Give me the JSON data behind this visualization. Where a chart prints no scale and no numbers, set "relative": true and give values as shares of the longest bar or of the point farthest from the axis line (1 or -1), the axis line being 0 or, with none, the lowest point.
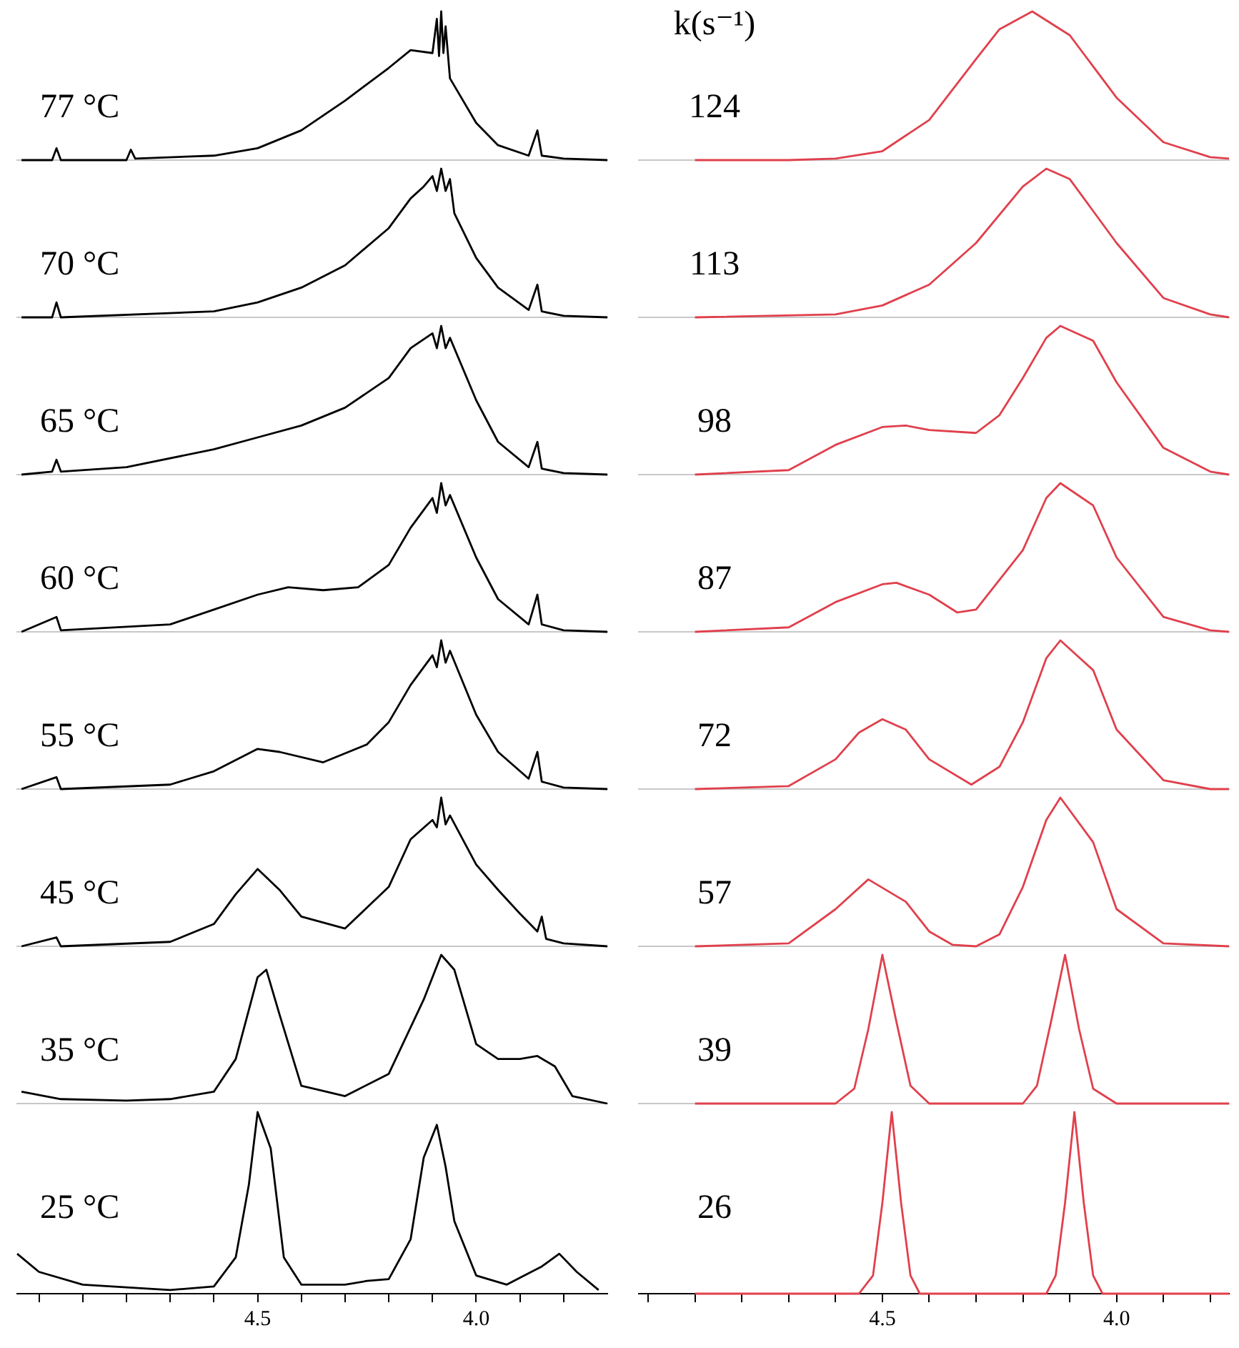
{
  "chart_data": [
    {
      "type": "line",
      "relative": true,
      "marker": "none",
      "tick_labels": false,
      "xlim": [
        5.05,
        3.7
      ],
      "annotations": [
        "77 °C"
      ],
      "x": [
        5.04,
        4.97,
        4.96,
        4.95,
        4.8,
        4.79,
        4.78,
        4.6,
        4.5,
        4.4,
        4.3,
        4.2,
        4.15,
        4.1,
        4.09,
        4.085,
        4.08,
        4.075,
        4.07,
        4.06,
        4.0,
        3.95,
        3.88,
        3.86,
        3.85,
        3.8,
        3.7
      ],
      "series": [
        {
          "color": "#000000",
          "values": [
            0,
            0,
            0.08,
            0,
            0,
            0.07,
            0.01,
            0.03,
            0.08,
            0.2,
            0.4,
            0.62,
            0.74,
            0.72,
            0.95,
            0.7,
            1,
            0.72,
            0.9,
            0.55,
            0.25,
            0.1,
            0.03,
            0.2,
            0.03,
            0.01,
            0
          ]
        }
      ]
    },
    {
      "type": "line",
      "relative": true,
      "marker": "none",
      "tick_labels": false,
      "xlim": [
        5.02,
        3.76
      ],
      "annotations": [
        "k(s⁻¹)",
        "124"
      ],
      "x": [
        4.9,
        4.7,
        4.6,
        4.5,
        4.4,
        4.3,
        4.25,
        4.18,
        4.1,
        4.0,
        3.9,
        3.8,
        3.76
      ],
      "series": [
        {
          "color": "#e0404c",
          "values": [
            0,
            0,
            0.01,
            0.06,
            0.27,
            0.68,
            0.88,
            1,
            0.84,
            0.42,
            0.12,
            0.02,
            0.01
          ]
        }
      ]
    },
    {
      "type": "line",
      "relative": true,
      "marker": "none",
      "tick_labels": false,
      "xlim": [
        5.05,
        3.7
      ],
      "annotations": [
        "70 °C"
      ],
      "x": [
        5.04,
        4.97,
        4.96,
        4.95,
        4.6,
        4.5,
        4.4,
        4.3,
        4.2,
        4.15,
        4.12,
        4.1,
        4.09,
        4.08,
        4.07,
        4.06,
        4.05,
        4.0,
        3.95,
        3.88,
        3.86,
        3.85,
        3.8,
        3.7
      ],
      "series": [
        {
          "color": "#000000",
          "values": [
            0,
            0,
            0.1,
            0,
            0.04,
            0.1,
            0.2,
            0.35,
            0.6,
            0.8,
            0.88,
            0.95,
            0.85,
            1,
            0.85,
            0.93,
            0.7,
            0.4,
            0.2,
            0.05,
            0.22,
            0.04,
            0.01,
            0
          ]
        }
      ]
    },
    {
      "type": "line",
      "relative": true,
      "marker": "none",
      "tick_labels": false,
      "xlim": [
        5.02,
        3.76
      ],
      "annotations": [
        "113"
      ],
      "x": [
        4.9,
        4.6,
        4.5,
        4.4,
        4.3,
        4.2,
        4.15,
        4.1,
        4.0,
        3.9,
        3.8,
        3.76
      ],
      "series": [
        {
          "color": "#e0404c",
          "values": [
            0,
            0.02,
            0.08,
            0.22,
            0.5,
            0.88,
            1,
            0.93,
            0.5,
            0.13,
            0.02,
            0
          ]
        }
      ]
    },
    {
      "type": "line",
      "relative": true,
      "marker": "none",
      "tick_labels": false,
      "xlim": [
        5.05,
        3.7
      ],
      "annotations": [
        "65 °C"
      ],
      "x": [
        5.04,
        4.97,
        4.96,
        4.95,
        4.8,
        4.6,
        4.5,
        4.4,
        4.3,
        4.2,
        4.15,
        4.1,
        4.09,
        4.08,
        4.07,
        4.06,
        4.0,
        3.95,
        3.88,
        3.86,
        3.85,
        3.8,
        3.7
      ],
      "series": [
        {
          "color": "#000000",
          "values": [
            0,
            0.02,
            0.1,
            0.02,
            0.05,
            0.17,
            0.25,
            0.33,
            0.45,
            0.65,
            0.85,
            0.95,
            0.85,
            1,
            0.85,
            0.92,
            0.5,
            0.22,
            0.05,
            0.22,
            0.04,
            0.01,
            0
          ]
        }
      ]
    },
    {
      "type": "line",
      "relative": true,
      "marker": "none",
      "tick_labels": false,
      "xlim": [
        5.02,
        3.76
      ],
      "annotations": [
        "98"
      ],
      "x": [
        4.9,
        4.7,
        4.6,
        4.5,
        4.45,
        4.4,
        4.3,
        4.25,
        4.2,
        4.15,
        4.12,
        4.05,
        4.0,
        3.9,
        3.8,
        3.76
      ],
      "series": [
        {
          "color": "#e0404c",
          "values": [
            0,
            0.03,
            0.2,
            0.32,
            0.33,
            0.3,
            0.28,
            0.4,
            0.65,
            0.92,
            1,
            0.9,
            0.62,
            0.18,
            0.02,
            0
          ]
        }
      ]
    },
    {
      "type": "line",
      "relative": true,
      "marker": "none",
      "tick_labels": false,
      "xlim": [
        5.05,
        3.7
      ],
      "annotations": [
        "60 °C"
      ],
      "x": [
        5.04,
        4.96,
        4.95,
        4.7,
        4.6,
        4.5,
        4.43,
        4.35,
        4.27,
        4.2,
        4.15,
        4.1,
        4.09,
        4.08,
        4.07,
        4.06,
        4.0,
        3.95,
        3.88,
        3.86,
        3.85,
        3.8,
        3.7
      ],
      "series": [
        {
          "color": "#000000",
          "values": [
            0,
            0.1,
            0.01,
            0.05,
            0.15,
            0.25,
            0.3,
            0.28,
            0.3,
            0.45,
            0.7,
            0.9,
            0.8,
            1,
            0.85,
            0.92,
            0.5,
            0.22,
            0.05,
            0.25,
            0.05,
            0.01,
            0
          ]
        }
      ]
    },
    {
      "type": "line",
      "relative": true,
      "marker": "none",
      "tick_labels": false,
      "xlim": [
        5.02,
        3.76
      ],
      "annotations": [
        "87"
      ],
      "x": [
        4.9,
        4.7,
        4.6,
        4.5,
        4.47,
        4.4,
        4.34,
        4.3,
        4.2,
        4.15,
        4.12,
        4.05,
        4.0,
        3.9,
        3.8,
        3.76
      ],
      "series": [
        {
          "color": "#e0404c",
          "values": [
            0,
            0.03,
            0.2,
            0.32,
            0.33,
            0.25,
            0.13,
            0.15,
            0.55,
            0.9,
            1,
            0.85,
            0.5,
            0.1,
            0.01,
            0
          ]
        }
      ]
    },
    {
      "type": "line",
      "relative": true,
      "marker": "none",
      "tick_labels": false,
      "xlim": [
        5.05,
        3.7
      ],
      "annotations": [
        "55 °C"
      ],
      "x": [
        5.04,
        4.96,
        4.95,
        4.7,
        4.6,
        4.5,
        4.45,
        4.35,
        4.25,
        4.2,
        4.15,
        4.1,
        4.09,
        4.08,
        4.07,
        4.06,
        4.0,
        3.95,
        3.88,
        3.86,
        3.85,
        3.8,
        3.7
      ],
      "series": [
        {
          "color": "#000000",
          "values": [
            0,
            0.08,
            0,
            0.03,
            0.12,
            0.27,
            0.25,
            0.18,
            0.3,
            0.45,
            0.7,
            0.9,
            0.82,
            1,
            0.85,
            0.93,
            0.5,
            0.25,
            0.07,
            0.25,
            0.05,
            0.01,
            0
          ]
        }
      ]
    },
    {
      "type": "line",
      "relative": true,
      "marker": "none",
      "tick_labels": false,
      "xlim": [
        5.02,
        3.76
      ],
      "annotations": [
        "72"
      ],
      "x": [
        4.9,
        4.7,
        4.6,
        4.55,
        4.5,
        4.45,
        4.4,
        4.31,
        4.25,
        4.2,
        4.15,
        4.12,
        4.05,
        4.0,
        3.9,
        3.8,
        3.76
      ],
      "series": [
        {
          "color": "#e0404c",
          "values": [
            0,
            0.02,
            0.2,
            0.38,
            0.47,
            0.4,
            0.2,
            0.03,
            0.15,
            0.45,
            0.88,
            1,
            0.8,
            0.4,
            0.06,
            0,
            0
          ]
        }
      ]
    },
    {
      "type": "line",
      "relative": true,
      "marker": "none",
      "tick_labels": false,
      "xlim": [
        5.05,
        3.7
      ],
      "annotations": [
        "45 °C"
      ],
      "x": [
        5.04,
        4.96,
        4.95,
        4.7,
        4.6,
        4.55,
        4.5,
        4.45,
        4.4,
        4.3,
        4.2,
        4.15,
        4.1,
        4.09,
        4.08,
        4.07,
        4.06,
        4.0,
        3.95,
        3.9,
        3.86,
        3.85,
        3.84,
        3.8,
        3.7
      ],
      "series": [
        {
          "color": "#000000",
          "values": [
            0,
            0.06,
            0,
            0.03,
            0.15,
            0.35,
            0.52,
            0.38,
            0.2,
            0.12,
            0.4,
            0.72,
            0.85,
            0.8,
            1,
            0.82,
            0.88,
            0.55,
            0.38,
            0.22,
            0.1,
            0.2,
            0.05,
            0.02,
            0
          ]
        }
      ]
    },
    {
      "type": "line",
      "relative": true,
      "marker": "none",
      "tick_labels": false,
      "xlim": [
        5.02,
        3.76
      ],
      "annotations": [
        "57"
      ],
      "x": [
        4.9,
        4.7,
        4.6,
        4.53,
        4.45,
        4.4,
        4.35,
        4.3,
        4.25,
        4.2,
        4.15,
        4.12,
        4.05,
        4.0,
        3.9,
        3.76
      ],
      "series": [
        {
          "color": "#e0404c",
          "values": [
            0,
            0.02,
            0.25,
            0.45,
            0.3,
            0.1,
            0.01,
            0,
            0.08,
            0.4,
            0.85,
            1,
            0.7,
            0.25,
            0.02,
            0
          ]
        }
      ]
    },
    {
      "type": "line",
      "relative": true,
      "marker": "none",
      "tick_labels": false,
      "xlim": [
        5.05,
        3.7
      ],
      "annotations": [
        "35 °C"
      ],
      "x": [
        5.04,
        4.95,
        4.8,
        4.7,
        4.6,
        4.55,
        4.5,
        4.48,
        4.45,
        4.4,
        4.3,
        4.2,
        4.12,
        4.08,
        4.05,
        4.03,
        4.0,
        3.95,
        3.9,
        3.86,
        3.82,
        3.78,
        3.7
      ],
      "series": [
        {
          "color": "#000000",
          "values": [
            0.08,
            0.03,
            0.02,
            0.03,
            0.08,
            0.3,
            0.85,
            0.9,
            0.6,
            0.12,
            0.05,
            0.2,
            0.7,
            1,
            0.9,
            0.7,
            0.4,
            0.3,
            0.3,
            0.32,
            0.25,
            0.05,
            0
          ]
        }
      ]
    },
    {
      "type": "line",
      "relative": true,
      "marker": "none",
      "tick_labels": false,
      "xlim": [
        5.02,
        3.76
      ],
      "annotations": [
        "39"
      ],
      "x": [
        4.9,
        4.6,
        4.56,
        4.53,
        4.5,
        4.47,
        4.44,
        4.4,
        4.2,
        4.17,
        4.14,
        4.11,
        4.08,
        4.05,
        4.0,
        3.76
      ],
      "series": [
        {
          "color": "#e0404c",
          "values": [
            0,
            0,
            0.1,
            0.5,
            1,
            0.55,
            0.12,
            0,
            0,
            0.12,
            0.55,
            1,
            0.5,
            0.1,
            0,
            0
          ]
        }
      ]
    },
    {
      "type": "line",
      "relative": true,
      "marker": "none",
      "tick_labels": "x",
      "xlim": [
        5.05,
        3.7
      ],
      "annotations": [
        "25 °C"
      ],
      "xticks": [
        {
          "value": 5.0,
          "label": null
        },
        {
          "value": 4.9,
          "label": null
        },
        {
          "value": 4.8,
          "label": null
        },
        {
          "value": 4.7,
          "label": null
        },
        {
          "value": 4.6,
          "label": null
        },
        4.5,
        {
          "value": 4.4,
          "label": null
        },
        {
          "value": 4.3,
          "label": null
        },
        {
          "value": 4.2,
          "label": null
        },
        {
          "value": 4.1,
          "label": null
        },
        {
          "value": 4.0,
          "label": "4.0"
        },
        {
          "value": 3.9,
          "label": null
        },
        {
          "value": 3.8,
          "label": null
        }
      ],
      "x": [
        5.05,
        5.0,
        4.9,
        4.7,
        4.6,
        4.55,
        4.52,
        4.5,
        4.47,
        4.44,
        4.4,
        4.3,
        4.25,
        4.2,
        4.15,
        4.12,
        4.09,
        4.07,
        4.05,
        4.0,
        3.93,
        3.85,
        3.81,
        3.77,
        3.72
      ],
      "series": [
        {
          "color": "#000000",
          "values": [
            0.22,
            0.12,
            0.05,
            0.02,
            0.04,
            0.2,
            0.6,
            1,
            0.8,
            0.2,
            0.05,
            0.05,
            0.07,
            0.08,
            0.3,
            0.75,
            0.93,
            0.7,
            0.4,
            0.1,
            0.05,
            0.15,
            0.22,
            0.12,
            0.02
          ]
        }
      ]
    },
    {
      "type": "line",
      "relative": true,
      "marker": "none",
      "tick_labels": "x",
      "xlim": [
        5.02,
        3.76
      ],
      "annotations": [
        "26"
      ],
      "xticks": [
        {
          "value": 5.0,
          "label": null
        },
        {
          "value": 4.9,
          "label": null
        },
        {
          "value": 4.8,
          "label": null
        },
        {
          "value": 4.7,
          "label": null
        },
        {
          "value": 4.6,
          "label": null
        },
        4.5,
        {
          "value": 4.4,
          "label": null
        },
        {
          "value": 4.3,
          "label": null
        },
        {
          "value": 4.2,
          "label": null
        },
        {
          "value": 4.1,
          "label": null
        },
        {
          "value": 4.0,
          "label": "4.0"
        },
        {
          "value": 3.9,
          "label": null
        },
        {
          "value": 3.8,
          "label": null
        }
      ],
      "x": [
        4.9,
        4.55,
        4.52,
        4.5,
        4.48,
        4.46,
        4.44,
        4.42,
        4.15,
        4.13,
        4.11,
        4.09,
        4.07,
        4.05,
        4.03,
        3.76
      ],
      "series": [
        {
          "color": "#e0404c",
          "values": [
            0,
            0,
            0.1,
            0.5,
            1,
            0.5,
            0.1,
            0,
            0,
            0.1,
            0.5,
            1,
            0.5,
            0.1,
            0,
            0
          ]
        }
      ]
    }
  ]
}
